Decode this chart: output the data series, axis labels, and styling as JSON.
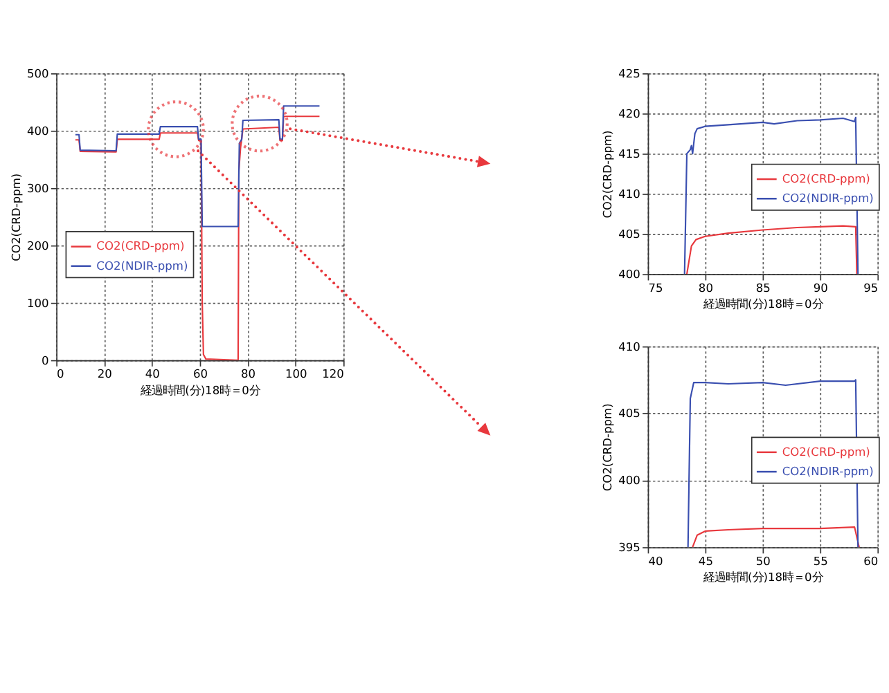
{
  "chart_data": [
    {
      "type": "line",
      "xlabel": "経過時間(分)18時＝0分",
      "ylabel": "CO2(CRD-ppm)",
      "xlim": [
        0,
        120
      ],
      "ylim": [
        0,
        500
      ],
      "xticks": [
        0,
        20,
        40,
        60,
        80,
        100,
        120
      ],
      "yticks": [
        0,
        100,
        200,
        300,
        400,
        500
      ],
      "grid": true,
      "legend": "left",
      "line_style": "solid",
      "marker": "none",
      "series": [
        {
          "name": "CO2(CRD-ppm)",
          "color": "#e8383d",
          "x": [
            8,
            9.5,
            10,
            25,
            25.5,
            43,
            43.5,
            59,
            59.5,
            60.5,
            61,
            61.5,
            62.5,
            76,
            76.3,
            77,
            78,
            93,
            93.5,
            94.5,
            95,
            110
          ],
          "values": [
            384,
            384,
            364,
            363,
            385,
            385,
            396,
            396,
            383,
            383,
            100,
            10,
            2,
            0,
            330,
            370,
            403,
            406,
            383,
            383,
            425,
            425
          ]
        },
        {
          "name": "CO2(NDIR-ppm)",
          "color": "#3a4fb0",
          "x": [
            8,
            9.5,
            10,
            25,
            25.5,
            43,
            43.5,
            59,
            59.5,
            60.5,
            61,
            76,
            76.5,
            77.5,
            78,
            93,
            93.5,
            94.5,
            95,
            110
          ],
          "values": [
            393,
            393,
            366,
            365,
            394,
            394,
            407,
            407,
            385,
            385,
            233,
            233,
            378,
            385,
            418,
            419,
            385,
            385,
            443,
            443
          ]
        }
      ]
    },
    {
      "type": "line",
      "xlabel": "経過時間(分)18時＝0分",
      "ylabel": "CO2(CRD-ppm)",
      "xlim": [
        75,
        95
      ],
      "ylim": [
        400,
        425
      ],
      "xticks": [
        75,
        80,
        85,
        90,
        95
      ],
      "yticks": [
        400,
        405,
        410,
        415,
        420,
        425
      ],
      "grid": true,
      "legend": "right",
      "line_style": "solid",
      "marker": "none",
      "series": [
        {
          "name": "CO2(CRD-ppm)",
          "color": "#e8383d",
          "x": [
            78.4,
            78.8,
            79.2,
            80,
            82,
            85,
            88,
            90,
            92,
            93.1,
            93.2
          ],
          "values": [
            400,
            403.5,
            404.3,
            404.7,
            405.1,
            405.5,
            405.8,
            405.9,
            406.0,
            405.9,
            400
          ]
        },
        {
          "name": "CO2(NDIR-ppm)",
          "color": "#3a4fb0",
          "x": [
            78.2,
            78.4,
            78.7,
            78.8,
            78.9,
            79.1,
            79.3,
            80,
            82,
            85,
            86,
            88,
            90,
            92,
            93,
            93.1,
            93.3
          ],
          "values": [
            400,
            415,
            415.5,
            416,
            415,
            417.5,
            418.1,
            418.4,
            418.6,
            418.9,
            418.7,
            419.1,
            419.2,
            419.4,
            419.0,
            419.5,
            400
          ]
        }
      ]
    },
    {
      "type": "line",
      "xlabel": "経過時間(分)18時＝0分",
      "ylabel": "CO2(CRD-ppm)",
      "xlim": [
        40,
        60
      ],
      "ylim": [
        395,
        410
      ],
      "xticks": [
        40,
        45,
        50,
        55,
        60
      ],
      "yticks": [
        395,
        400,
        405,
        410
      ],
      "grid": true,
      "legend": "right",
      "line_style": "solid",
      "marker": "none",
      "series": [
        {
          "name": "CO2(CRD-ppm)",
          "color": "#e8383d",
          "x": [
            43.9,
            44.3,
            45,
            47,
            50,
            55,
            58,
            58.4
          ],
          "values": [
            395,
            395.9,
            396.2,
            396.3,
            396.4,
            396.4,
            396.5,
            395
          ]
        },
        {
          "name": "CO2(NDIR-ppm)",
          "color": "#3a4fb0",
          "x": [
            43.5,
            43.7,
            44,
            45,
            47,
            50,
            52,
            55,
            58,
            58.1,
            58.3
          ],
          "values": [
            395,
            406.1,
            407.3,
            407.3,
            407.2,
            407.3,
            407.1,
            407.4,
            407.4,
            407.5,
            395
          ]
        }
      ]
    }
  ]
}
